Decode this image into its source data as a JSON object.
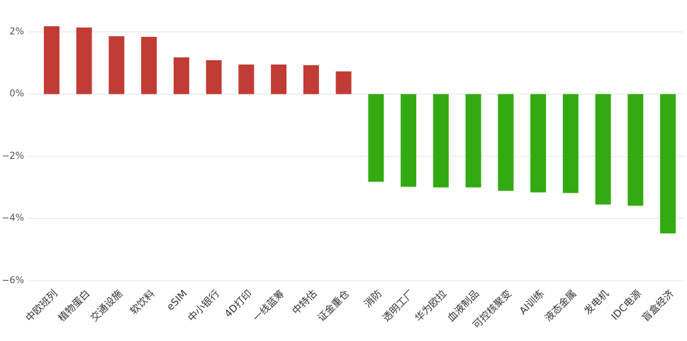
{
  "chart_data": {
    "type": "bar",
    "categories": [
      "中欧班列",
      "植物蛋白",
      "交通设施",
      "软饮料",
      "eSIM",
      "中小银行",
      "4D打印",
      "一线蓝筹",
      "中特估",
      "证金重仓",
      "消防",
      "透明工厂",
      "华为欧拉",
      "血液制品",
      "可控核聚变",
      "AI训练",
      "液态金属",
      "发电机",
      "IDC电源",
      "盲盒经济"
    ],
    "values": [
      2.18,
      2.14,
      1.86,
      1.84,
      1.18,
      1.09,
      0.95,
      0.95,
      0.93,
      0.73,
      -2.82,
      -2.98,
      -3.0,
      -3.0,
      -3.11,
      -3.16,
      -3.18,
      -3.55,
      -3.59,
      -4.48
    ],
    "positive_color": "#c23b35",
    "negative_color": "#33aa11",
    "ylim": [
      -6,
      2.5
    ],
    "yticks": [
      {
        "value": 2,
        "label": "2%"
      },
      {
        "value": 0,
        "label": "0%"
      },
      {
        "value": -2,
        "label": "−2%"
      },
      {
        "value": -4,
        "label": "−4%"
      },
      {
        "value": -6,
        "label": "−6%"
      }
    ],
    "grid": true
  }
}
